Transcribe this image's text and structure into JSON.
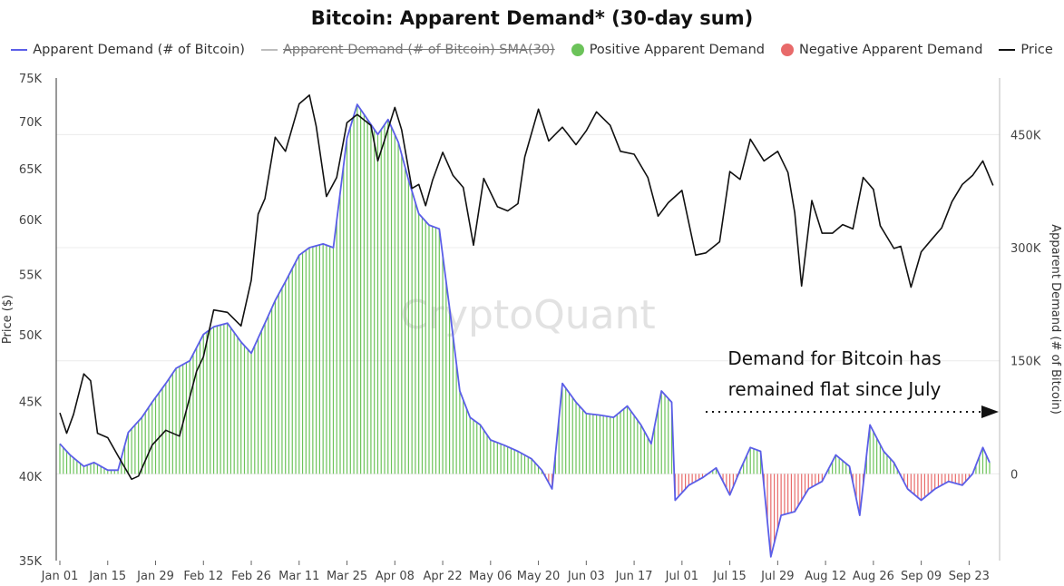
{
  "title": "Bitcoin: Apparent Demand* (30-day sum)",
  "legend": [
    {
      "label": "Apparent Demand (# of Bitcoin)",
      "kind": "line",
      "color": "#5b5ee8",
      "struck": false
    },
    {
      "label": "Apparent Demand (# of Bitcoin)  SMA(30)",
      "kind": "line",
      "color": "#bdbdbd",
      "struck": true
    },
    {
      "label": "Positive Apparent Demand",
      "kind": "dot",
      "color": "#6cc35a",
      "struck": false
    },
    {
      "label": "Negative Apparent Demand",
      "kind": "dot",
      "color": "#e86a6a",
      "struck": false
    },
    {
      "label": "Price",
      "kind": "line",
      "color": "#111111",
      "struck": false
    }
  ],
  "watermark": "CryptoQuant",
  "annotation": {
    "lines": [
      "Demand for Bitcoin has",
      "remained flat since July"
    ]
  },
  "chart_data": {
    "type": "line",
    "x_ticks": [
      "Jan 01",
      "Jan 15",
      "Jan 29",
      "Feb 12",
      "Feb 26",
      "Mar 11",
      "Mar 25",
      "Apr 08",
      "Apr 22",
      "May 06",
      "May 20",
      "Jun 03",
      "Jun 17",
      "Jul 01",
      "Jul 15",
      "Jul 29",
      "Aug 12",
      "Aug 26",
      "Sep 09",
      "Sep 23"
    ],
    "y_left": {
      "label": "Price ($)",
      "ticks": [
        "35K",
        "40K",
        "45K",
        "50K",
        "55K",
        "60K",
        "65K",
        "70K",
        "75K"
      ],
      "tick_values": [
        35000,
        40000,
        45000,
        50000,
        55000,
        60000,
        65000,
        70000,
        75000
      ],
      "range": [
        35000,
        75000
      ],
      "scale": "log"
    },
    "y_right": {
      "label": "Apparent Demand (# of Bitcoin)",
      "ticks": [
        "0",
        "150K",
        "300K",
        "450K"
      ],
      "tick_values": [
        0,
        150000,
        300000,
        450000
      ],
      "range": [
        -115000,
        525000
      ]
    },
    "grid": "horizontal",
    "colors": {
      "price": "#111111",
      "demand": "#5b5ee8",
      "positive": "#6cc35a",
      "negative": "#e86a6a"
    },
    "series": [
      {
        "name": "Price",
        "axis": "left",
        "keys": [
          [
            "2024-01-01",
            44200
          ],
          [
            "2024-01-03",
            42800
          ],
          [
            "2024-01-05",
            44100
          ],
          [
            "2024-01-08",
            47000
          ],
          [
            "2024-01-10",
            46500
          ],
          [
            "2024-01-12",
            42800
          ],
          [
            "2024-01-15",
            42500
          ],
          [
            "2024-01-18",
            41300
          ],
          [
            "2024-01-22",
            39800
          ],
          [
            "2024-01-24",
            40000
          ],
          [
            "2024-01-28",
            42000
          ],
          [
            "2024-02-01",
            43000
          ],
          [
            "2024-02-05",
            42600
          ],
          [
            "2024-02-08",
            45300
          ],
          [
            "2024-02-10",
            47200
          ],
          [
            "2024-02-12",
            48300
          ],
          [
            "2024-02-15",
            52000
          ],
          [
            "2024-02-19",
            51800
          ],
          [
            "2024-02-23",
            50700
          ],
          [
            "2024-02-26",
            54500
          ],
          [
            "2024-02-28",
            60500
          ],
          [
            "2024-03-01",
            62000
          ],
          [
            "2024-03-04",
            68300
          ],
          [
            "2024-03-07",
            66800
          ],
          [
            "2024-03-11",
            72000
          ],
          [
            "2024-03-14",
            73000
          ],
          [
            "2024-03-16",
            69500
          ],
          [
            "2024-03-19",
            62200
          ],
          [
            "2024-03-22",
            64100
          ],
          [
            "2024-03-25",
            69900
          ],
          [
            "2024-03-28",
            70800
          ],
          [
            "2024-04-01",
            69600
          ],
          [
            "2024-04-03",
            65800
          ],
          [
            "2024-04-05",
            68000
          ],
          [
            "2024-04-08",
            71600
          ],
          [
            "2024-04-10",
            69100
          ],
          [
            "2024-04-13",
            63000
          ],
          [
            "2024-04-15",
            63400
          ],
          [
            "2024-04-17",
            61300
          ],
          [
            "2024-04-19",
            63800
          ],
          [
            "2024-04-22",
            66700
          ],
          [
            "2024-04-25",
            64300
          ],
          [
            "2024-04-28",
            63100
          ],
          [
            "2024-05-01",
            57600
          ],
          [
            "2024-05-04",
            64000
          ],
          [
            "2024-05-08",
            61200
          ],
          [
            "2024-05-11",
            60800
          ],
          [
            "2024-05-14",
            61500
          ],
          [
            "2024-05-16",
            66200
          ],
          [
            "2024-05-20",
            71400
          ],
          [
            "2024-05-23",
            67900
          ],
          [
            "2024-05-27",
            69400
          ],
          [
            "2024-05-31",
            67500
          ],
          [
            "2024-06-03",
            69000
          ],
          [
            "2024-06-06",
            71100
          ],
          [
            "2024-06-10",
            69600
          ],
          [
            "2024-06-13",
            66800
          ],
          [
            "2024-06-17",
            66500
          ],
          [
            "2024-06-21",
            64100
          ],
          [
            "2024-06-24",
            60300
          ],
          [
            "2024-06-27",
            61600
          ],
          [
            "2024-07-01",
            62800
          ],
          [
            "2024-07-05",
            56700
          ],
          [
            "2024-07-08",
            56900
          ],
          [
            "2024-07-12",
            57900
          ],
          [
            "2024-07-15",
            64700
          ],
          [
            "2024-07-18",
            63900
          ],
          [
            "2024-07-21",
            68100
          ],
          [
            "2024-07-25",
            65800
          ],
          [
            "2024-07-29",
            66800
          ],
          [
            "2024-08-01",
            64600
          ],
          [
            "2024-08-03",
            60600
          ],
          [
            "2024-08-05",
            54000
          ],
          [
            "2024-08-08",
            61800
          ],
          [
            "2024-08-11",
            58700
          ],
          [
            "2024-08-14",
            58700
          ],
          [
            "2024-08-17",
            59500
          ],
          [
            "2024-08-20",
            59100
          ],
          [
            "2024-08-23",
            64100
          ],
          [
            "2024-08-26",
            62900
          ],
          [
            "2024-08-28",
            59400
          ],
          [
            "2024-09-01",
            57300
          ],
          [
            "2024-09-03",
            57500
          ],
          [
            "2024-09-06",
            53900
          ],
          [
            "2024-09-09",
            57000
          ],
          [
            "2024-09-12",
            58100
          ],
          [
            "2024-09-15",
            59200
          ],
          [
            "2024-09-18",
            61700
          ],
          [
            "2024-09-21",
            63400
          ],
          [
            "2024-09-24",
            64300
          ],
          [
            "2024-09-27",
            65800
          ],
          [
            "2024-09-30",
            63300
          ]
        ]
      },
      {
        "name": "Apparent Demand (# of Bitcoin)",
        "axis": "right",
        "keys": [
          [
            "2024-01-01",
            40000
          ],
          [
            "2024-01-04",
            25000
          ],
          [
            "2024-01-08",
            10000
          ],
          [
            "2024-01-11",
            15000
          ],
          [
            "2024-01-15",
            5000
          ],
          [
            "2024-01-18",
            5000
          ],
          [
            "2024-01-21",
            55000
          ],
          [
            "2024-01-25",
            75000
          ],
          [
            "2024-01-28",
            95000
          ],
          [
            "2024-02-01",
            120000
          ],
          [
            "2024-02-04",
            140000
          ],
          [
            "2024-02-08",
            150000
          ],
          [
            "2024-02-12",
            185000
          ],
          [
            "2024-02-15",
            195000
          ],
          [
            "2024-02-19",
            200000
          ],
          [
            "2024-02-23",
            175000
          ],
          [
            "2024-02-26",
            160000
          ],
          [
            "2024-03-01",
            200000
          ],
          [
            "2024-03-04",
            230000
          ],
          [
            "2024-03-07",
            255000
          ],
          [
            "2024-03-11",
            290000
          ],
          [
            "2024-03-14",
            300000
          ],
          [
            "2024-03-18",
            305000
          ],
          [
            "2024-03-21",
            300000
          ],
          [
            "2024-03-25",
            445000
          ],
          [
            "2024-03-28",
            490000
          ],
          [
            "2024-03-31",
            470000
          ],
          [
            "2024-04-03",
            450000
          ],
          [
            "2024-04-06",
            470000
          ],
          [
            "2024-04-09",
            440000
          ],
          [
            "2024-04-12",
            390000
          ],
          [
            "2024-04-15",
            345000
          ],
          [
            "2024-04-18",
            330000
          ],
          [
            "2024-04-21",
            325000
          ],
          [
            "2024-04-24",
            220000
          ],
          [
            "2024-04-27",
            110000
          ],
          [
            "2024-04-30",
            75000
          ],
          [
            "2024-05-03",
            65000
          ],
          [
            "2024-05-06",
            45000
          ],
          [
            "2024-05-10",
            38000
          ],
          [
            "2024-05-14",
            30000
          ],
          [
            "2024-05-18",
            20000
          ],
          [
            "2024-05-21",
            5000
          ],
          [
            "2024-05-24",
            -20000
          ],
          [
            "2024-05-27",
            120000
          ],
          [
            "2024-05-31",
            95000
          ],
          [
            "2024-06-03",
            80000
          ],
          [
            "2024-06-07",
            78000
          ],
          [
            "2024-06-11",
            75000
          ],
          [
            "2024-06-15",
            90000
          ],
          [
            "2024-06-19",
            65000
          ],
          [
            "2024-06-22",
            40000
          ],
          [
            "2024-06-25",
            110000
          ],
          [
            "2024-06-28",
            95000
          ],
          [
            "2024-06-29",
            -35000
          ],
          [
            "2024-07-03",
            -15000
          ],
          [
            "2024-07-07",
            -5000
          ],
          [
            "2024-07-11",
            8000
          ],
          [
            "2024-07-15",
            -28000
          ],
          [
            "2024-07-18",
            5000
          ],
          [
            "2024-07-21",
            35000
          ],
          [
            "2024-07-24",
            30000
          ],
          [
            "2024-07-27",
            -110000
          ],
          [
            "2024-07-30",
            -55000
          ],
          [
            "2024-08-03",
            -50000
          ],
          [
            "2024-08-07",
            -20000
          ],
          [
            "2024-08-11",
            -10000
          ],
          [
            "2024-08-15",
            25000
          ],
          [
            "2024-08-19",
            10000
          ],
          [
            "2024-08-22",
            -55000
          ],
          [
            "2024-08-25",
            65000
          ],
          [
            "2024-08-29",
            30000
          ],
          [
            "2024-09-01",
            15000
          ],
          [
            "2024-09-05",
            -20000
          ],
          [
            "2024-09-09",
            -35000
          ],
          [
            "2024-09-13",
            -20000
          ],
          [
            "2024-09-17",
            -10000
          ],
          [
            "2024-09-21",
            -15000
          ],
          [
            "2024-09-24",
            0
          ],
          [
            "2024-09-27",
            35000
          ],
          [
            "2024-09-29",
            15000
          ]
        ]
      }
    ]
  }
}
